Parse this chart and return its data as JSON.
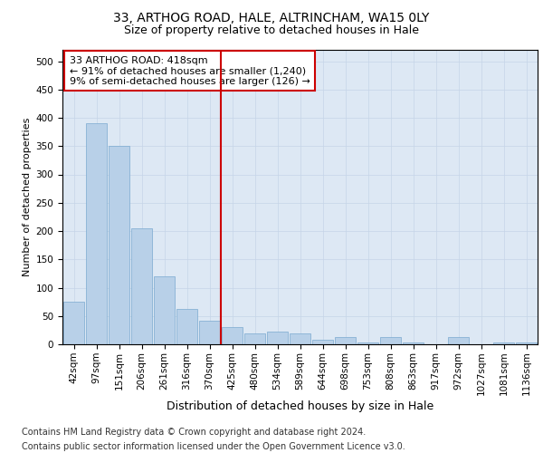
{
  "title1": "33, ARTHOG ROAD, HALE, ALTRINCHAM, WA15 0LY",
  "title2": "Size of property relative to detached houses in Hale",
  "xlabel": "Distribution of detached houses by size in Hale",
  "ylabel": "Number of detached properties",
  "bar_labels": [
    "42sqm",
    "97sqm",
    "151sqm",
    "206sqm",
    "261sqm",
    "316sqm",
    "370sqm",
    "425sqm",
    "480sqm",
    "534sqm",
    "589sqm",
    "644sqm",
    "698sqm",
    "753sqm",
    "808sqm",
    "863sqm",
    "917sqm",
    "972sqm",
    "1027sqm",
    "1081sqm",
    "1136sqm"
  ],
  "bar_values": [
    75,
    390,
    350,
    205,
    120,
    62,
    42,
    30,
    20,
    23,
    20,
    8,
    13,
    3,
    13,
    3,
    0,
    13,
    0,
    3,
    3
  ],
  "bar_color": "#b8d0e8",
  "bar_edge_color": "#7aaad0",
  "annotation_line_color": "#cc0000",
  "annotation_text_line1": "33 ARTHOG ROAD: 418sqm",
  "annotation_text_line2": "← 91% of detached houses are smaller (1,240)",
  "annotation_text_line3": "9% of semi-detached houses are larger (126) →",
  "annotation_box_color": "#ffffff",
  "annotation_box_edge": "#cc0000",
  "ylim": [
    0,
    520
  ],
  "yticks": [
    0,
    50,
    100,
    150,
    200,
    250,
    300,
    350,
    400,
    450,
    500
  ],
  "bg_color": "#dde8f4",
  "footer1": "Contains HM Land Registry data © Crown copyright and database right 2024.",
  "footer2": "Contains public sector information licensed under the Open Government Licence v3.0.",
  "title1_fontsize": 10,
  "title2_fontsize": 9,
  "xlabel_fontsize": 9,
  "ylabel_fontsize": 8,
  "tick_fontsize": 7.5,
  "footer_fontsize": 7,
  "annot_fontsize": 8
}
